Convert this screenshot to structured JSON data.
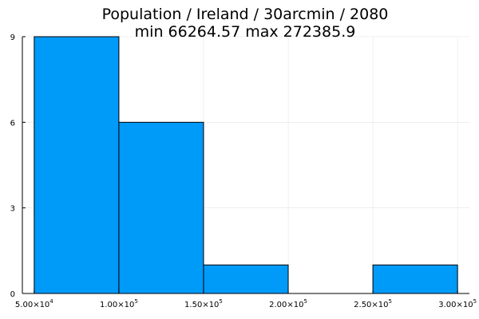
{
  "chart_data": {
    "type": "bar",
    "title": "Population / Ireland / 30arcmin / 2080",
    "subtitle": "min 66264.57  max 272385.9",
    "xlabel": "",
    "ylabel": "",
    "bins": [
      {
        "x0": 50000,
        "x1": 100000,
        "count": 9
      },
      {
        "x0": 100000,
        "x1": 150000,
        "count": 6
      },
      {
        "x0": 150000,
        "x1": 200000,
        "count": 1
      },
      {
        "x0": 200000,
        "x1": 250000,
        "count": 0
      },
      {
        "x0": 250000,
        "x1": 300000,
        "count": 1
      }
    ],
    "xlim": [
      43000,
      307000
    ],
    "ylim": [
      0,
      9
    ],
    "xticks": [
      {
        "value": 50000,
        "mantissa": "5.00×10",
        "exp": "4"
      },
      {
        "value": 100000,
        "mantissa": "1.00×10",
        "exp": "5"
      },
      {
        "value": 150000,
        "mantissa": "1.50×10",
        "exp": "5"
      },
      {
        "value": 200000,
        "mantissa": "2.00×10",
        "exp": "5"
      },
      {
        "value": 250000,
        "mantissa": "2.50×10",
        "exp": "5"
      },
      {
        "value": 300000,
        "mantissa": "3.00×10",
        "exp": "5"
      }
    ],
    "yticks": [
      {
        "value": 0,
        "label": "0"
      },
      {
        "value": 3,
        "label": "3"
      },
      {
        "value": 6,
        "label": "6"
      },
      {
        "value": 9,
        "label": "9"
      }
    ],
    "bar_color": "#009AF9",
    "grid": true,
    "legend": "none"
  }
}
